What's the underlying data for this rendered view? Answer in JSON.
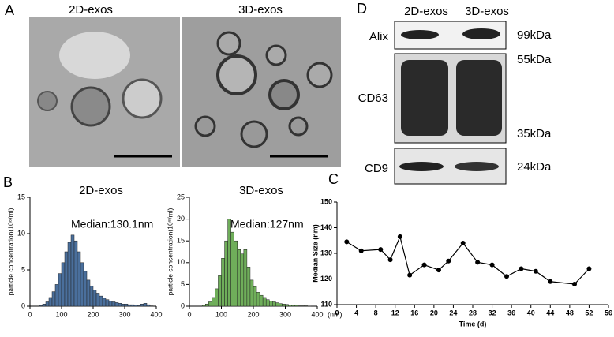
{
  "panels": {
    "A": {
      "label": "A",
      "titles": [
        "2D-exos",
        "3D-exos"
      ]
    },
    "B": {
      "label": "B"
    },
    "C": {
      "label": "C"
    },
    "D": {
      "label": "D",
      "lanes": [
        "2D-exos",
        "3D-exos"
      ],
      "rows": [
        {
          "name": "Alix",
          "sizes": [
            "99kDa"
          ]
        },
        {
          "name": "CD63",
          "sizes": [
            "55kDa",
            "35kDa"
          ]
        },
        {
          "name": "CD9",
          "sizes": [
            "24kDa"
          ]
        }
      ]
    }
  },
  "chart_data": [
    {
      "type": "histogram",
      "title": "2D-exos",
      "annotation": "Median:130.1nm",
      "y_label": "particle concentration(10⁸/ml)",
      "color": "#4a6f9c",
      "bins": [
        0,
        10,
        20,
        30,
        40,
        50,
        60,
        70,
        80,
        90,
        100,
        110,
        120,
        130,
        140,
        150,
        160,
        170,
        180,
        190,
        200,
        210,
        220,
        230,
        240,
        250,
        260,
        270,
        280,
        290,
        300,
        310,
        320,
        330,
        340,
        350,
        360,
        370,
        380,
        390,
        400
      ],
      "values": [
        0,
        0,
        0,
        0.1,
        0.3,
        0.6,
        1.2,
        2,
        3,
        4.5,
        6,
        7.5,
        8.8,
        9.8,
        9,
        7.5,
        6,
        4.8,
        3.6,
        2.8,
        2.2,
        1.8,
        1.4,
        1.1,
        0.9,
        0.7,
        0.6,
        0.5,
        0.4,
        0.3,
        0.3,
        0.2,
        0.2,
        0.15,
        0.1,
        0.3,
        0.4,
        0.2,
        0.05,
        0
      ],
      "xlim": [
        0,
        400
      ],
      "xticks": [
        0,
        100,
        200,
        300,
        400
      ],
      "ylim": [
        0,
        15
      ],
      "yticks": [
        0,
        5,
        10,
        15
      ]
    },
    {
      "type": "histogram",
      "title": "3D-exos",
      "annotation": "Median:127nm",
      "y_label": "particle concentration(10⁸/ml)",
      "x_label": "(nm)",
      "color": "#6fae5a",
      "bins": [
        0,
        10,
        20,
        30,
        40,
        50,
        60,
        70,
        80,
        90,
        100,
        110,
        120,
        130,
        140,
        150,
        160,
        170,
        180,
        190,
        200,
        210,
        220,
        230,
        240,
        250,
        260,
        270,
        280,
        290,
        300,
        310,
        320,
        330,
        340,
        350,
        360,
        370,
        380,
        390,
        400
      ],
      "values": [
        0,
        0,
        0,
        0,
        0.2,
        0.5,
        1,
        2,
        4,
        7,
        11,
        15,
        20,
        17,
        15,
        13,
        12,
        13,
        9,
        6,
        4.5,
        3.2,
        2.5,
        2,
        1.5,
        1.2,
        1,
        0.8,
        0.6,
        0.5,
        0.4,
        0.3,
        0.2,
        0.2,
        0.1,
        0.1,
        0.1,
        0.05,
        0,
        0
      ],
      "xlim": [
        0,
        400
      ],
      "xticks": [
        0,
        100,
        200,
        300,
        400
      ],
      "ylim": [
        0,
        25
      ],
      "yticks": [
        0,
        5,
        10,
        15,
        20,
        25
      ]
    },
    {
      "type": "line",
      "y_label": "Median Size (nm)",
      "x_label": "Time (d)",
      "color": "#000000",
      "x": [
        2,
        5,
        9,
        11,
        13,
        15,
        18,
        21,
        23,
        26,
        29,
        32,
        35,
        38,
        41,
        44,
        49,
        52
      ],
      "values": [
        134.5,
        131,
        131.5,
        127.5,
        136.5,
        121.5,
        125.5,
        123.5,
        127,
        134,
        126.5,
        125.5,
        121,
        124,
        123,
        119,
        118,
        124
      ],
      "xlim": [
        0,
        56
      ],
      "xticks": [
        0,
        4,
        8,
        12,
        16,
        20,
        24,
        28,
        32,
        36,
        40,
        44,
        48,
        52,
        56
      ],
      "ylim": [
        110,
        150
      ],
      "yticks": [
        110,
        120,
        130,
        140,
        150
      ]
    }
  ]
}
